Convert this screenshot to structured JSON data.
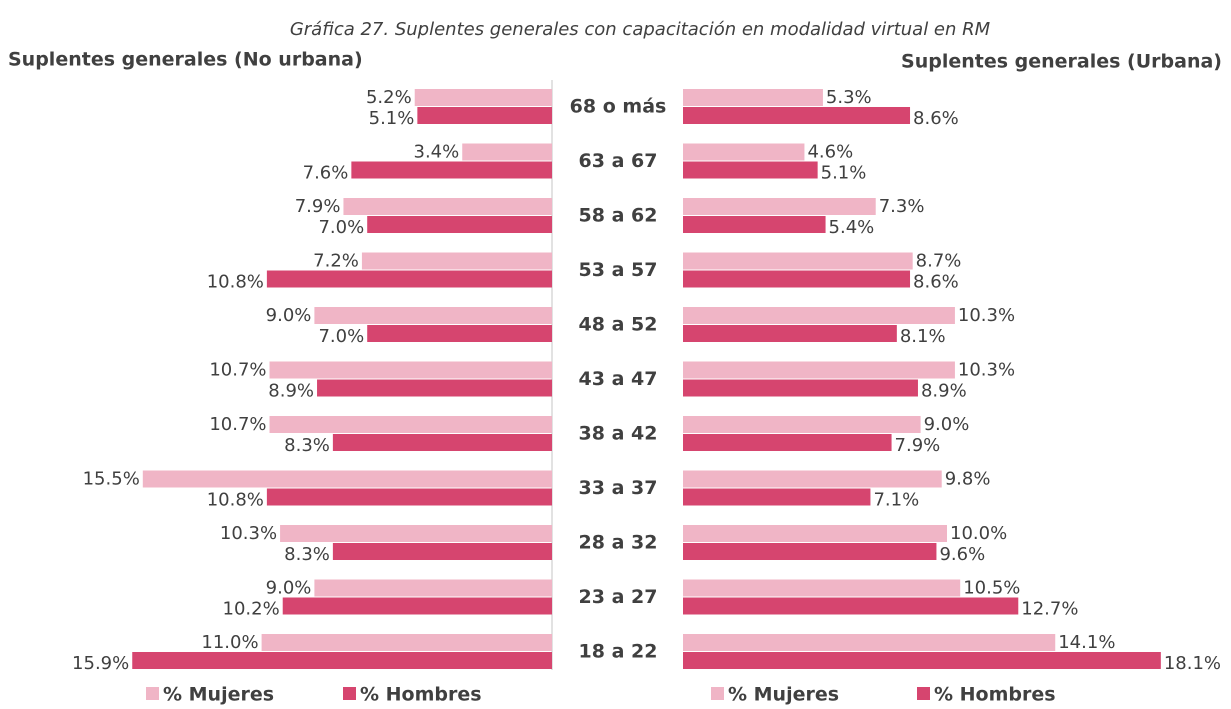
{
  "chart_data": {
    "type": "bar",
    "orientation": "horizontal",
    "title": "Gráfica 27. Suplentes generales con capacitación en modalidad virtual en RM",
    "categories": [
      "68 o más",
      "63 a 67",
      "58 a 62",
      "53 a 57",
      "48 a 52",
      "43 a 47",
      "38 a 42",
      "33 a 37",
      "28 a 32",
      "23 a 27",
      "18 a 22"
    ],
    "panels": [
      {
        "title": "Suplentes generales (No urbana)",
        "direction": "left",
        "series": [
          {
            "name": "% Mujeres",
            "color": "#f0b5c6",
            "values": [
              5.2,
              3.4,
              7.9,
              7.2,
              9.0,
              10.7,
              10.7,
              15.5,
              10.3,
              9.0,
              11.0
            ],
            "value_labels": [
              "5.2%",
              "3.4%",
              "7.9%",
              "7.2%",
              "9.0%",
              "10.7%",
              "10.7%",
              "15.5%",
              "10.3%",
              "9.0%",
              "11.0%"
            ]
          },
          {
            "name": "% Hombres",
            "color": "#d6456f",
            "values": [
              5.1,
              7.6,
              7.0,
              10.8,
              7.0,
              8.9,
              8.3,
              10.8,
              8.3,
              10.2,
              15.9
            ],
            "value_labels": [
              "5.1%",
              "7.6%",
              "7.0%",
              "10.8%",
              "7.0%",
              "8.9%",
              "8.3%",
              "10.8%",
              "8.3%",
              "10.2%",
              "15.9%"
            ]
          }
        ]
      },
      {
        "title": "Suplentes generales (Urbana)",
        "direction": "right",
        "series": [
          {
            "name": "% Mujeres",
            "color": "#f0b5c6",
            "values": [
              5.3,
              4.6,
              7.3,
              8.7,
              10.3,
              10.3,
              9.0,
              9.8,
              10.0,
              10.5,
              14.1
            ],
            "value_labels": [
              "5.3%",
              "4.6%",
              "7.3%",
              "8.7%",
              "10.3%",
              "10.3%",
              "9.0%",
              "9.8%",
              "10.0%",
              "10.5%",
              "14.1%"
            ]
          },
          {
            "name": "% Hombres",
            "color": "#d6456f",
            "values": [
              8.6,
              5.1,
              5.4,
              8.6,
              8.1,
              8.9,
              7.9,
              7.1,
              9.6,
              12.7,
              18.1
            ],
            "value_labels": [
              "8.6%",
              "5.1%",
              "5.4%",
              "8.6%",
              "8.1%",
              "8.9%",
              "7.9%",
              "7.1%",
              "9.6%",
              "12.7%",
              "18.1%"
            ]
          }
        ]
      }
    ]
  }
}
